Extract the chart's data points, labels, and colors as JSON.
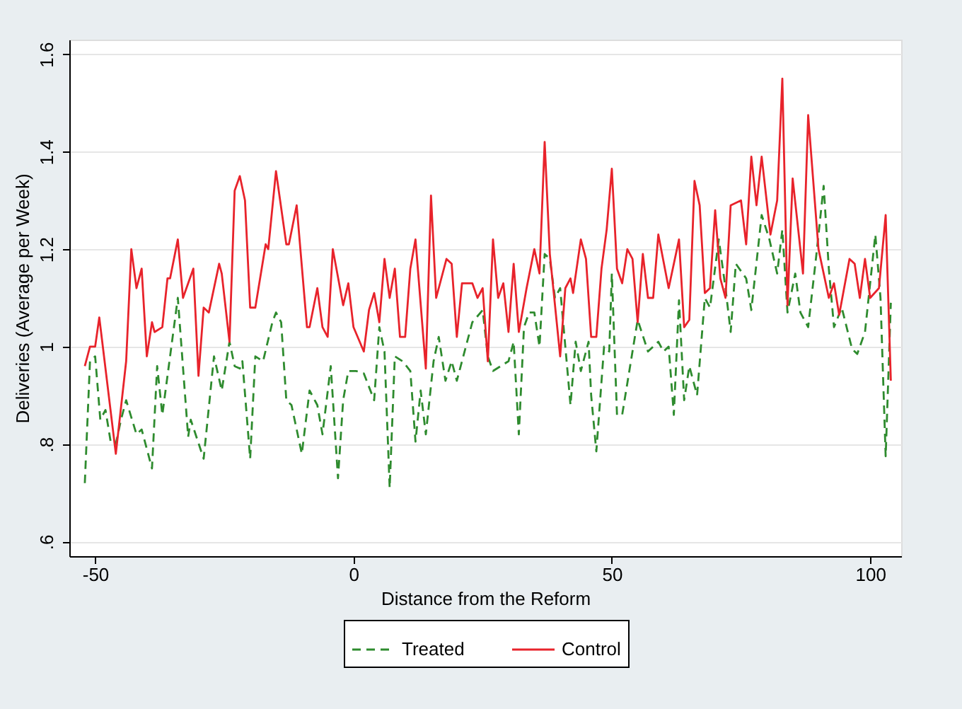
{
  "chart_data": {
    "type": "line",
    "xlabel": "Distance from the Reform",
    "ylabel": "Deliveries (Average per Week)",
    "xlim": [
      -55,
      106
    ],
    "xticks": [
      -50,
      0,
      50,
      100
    ],
    "ylim": [
      0.57,
      1.63
    ],
    "yticks": [
      {
        "value": 0.6,
        "label": ".6"
      },
      {
        "value": 0.8,
        "label": ".8"
      },
      1,
      1.2,
      1.4,
      1.6
    ],
    "grid": "y",
    "legend": "bottom",
    "series": [
      {
        "name": "Treated",
        "color": "#2e8b2e",
        "line_style": "dashed",
        "x": [
          -52,
          -51,
          -50,
          -49,
          -48,
          -47,
          -46,
          -45,
          -44,
          -42,
          -41,
          -39,
          -38,
          -37,
          -34,
          -32,
          -31.5,
          -29,
          -27,
          -25.5,
          -24,
          -23,
          -22,
          -21.5,
          -20,
          -19,
          -17.5,
          -15.7,
          -15,
          -14,
          -13,
          -12,
          -10,
          -8.5,
          -7,
          -6,
          -4.4,
          -3,
          -2,
          -1,
          0.5,
          2,
          4,
          5,
          6,
          7,
          8,
          9.5,
          11,
          12,
          13,
          14,
          15.5,
          16.5,
          17.8,
          19,
          20,
          22,
          23,
          25,
          26,
          27,
          30,
          31,
          32,
          33,
          34,
          35,
          36,
          37,
          38,
          39,
          40,
          42,
          43,
          44,
          45.5,
          46,
          47,
          48.5,
          49.5,
          50,
          51,
          52,
          55,
          57,
          59,
          60,
          61,
          62,
          63,
          64,
          65,
          66.5,
          68,
          69,
          70.7,
          72,
          73,
          74,
          76,
          77,
          79,
          80.5,
          82,
          83,
          84,
          85.5,
          86.5,
          88,
          89.5,
          91,
          92,
          93,
          94.5,
          96.5,
          97.5,
          99,
          101,
          102,
          103,
          104
        ],
        "values": [
          0.72,
          0.97,
          0.98,
          0.85,
          0.87,
          0.805,
          0.8,
          0.85,
          0.89,
          0.82,
          0.83,
          0.75,
          0.96,
          0.86,
          1.1,
          0.815,
          0.85,
          0.77,
          0.98,
          0.91,
          1.01,
          0.96,
          0.955,
          0.97,
          0.77,
          0.98,
          0.97,
          1.05,
          1.07,
          1.05,
          0.89,
          0.88,
          0.78,
          0.91,
          0.88,
          0.82,
          0.96,
          0.73,
          0.89,
          0.95,
          0.95,
          0.945,
          0.89,
          1.04,
          0.99,
          0.71,
          0.98,
          0.97,
          0.95,
          0.805,
          0.91,
          0.82,
          0.97,
          1.02,
          0.93,
          0.97,
          0.93,
          1.01,
          1.05,
          1.075,
          0.98,
          0.95,
          0.97,
          1.01,
          0.82,
          1.04,
          1.07,
          1.07,
          1.0,
          1.19,
          1.18,
          1.1,
          1.12,
          0.88,
          1.01,
          0.95,
          1.01,
          0.9,
          0.785,
          1.0,
          0.99,
          1.15,
          0.86,
          0.86,
          1.055,
          0.99,
          1.01,
          0.99,
          1.0,
          0.86,
          1.095,
          0.89,
          0.96,
          0.9,
          1.1,
          1.08,
          1.22,
          1.12,
          1.03,
          1.17,
          1.14,
          1.075,
          1.27,
          1.22,
          1.15,
          1.24,
          1.07,
          1.15,
          1.07,
          1.04,
          1.18,
          1.33,
          1.16,
          1.04,
          1.08,
          0.995,
          0.985,
          1.03,
          1.23,
          1.1,
          0.775,
          1.09
        ]
      },
      {
        "name": "Control",
        "color": "#e8232b",
        "line_style": "solid",
        "x": [
          -52,
          -51,
          -50,
          -49.2,
          -46,
          -44,
          -43,
          -42,
          -41,
          -40,
          -39,
          -38.5,
          -37,
          -36,
          -35.5,
          -34,
          -33,
          -31,
          -30,
          -29,
          -28,
          -26,
          -25.5,
          -24,
          -23,
          -22,
          -21,
          -20,
          -19,
          -17,
          -16.5,
          -15,
          -13,
          -12.5,
          -11,
          -9,
          -8.5,
          -7,
          -6,
          -5,
          -4,
          -2,
          -1,
          0,
          2,
          3,
          4,
          5,
          6,
          7,
          8,
          9,
          10,
          11,
          12,
          14,
          15,
          16,
          18,
          19,
          20,
          21,
          23,
          24,
          25,
          26,
          27,
          28,
          29,
          30,
          31,
          32,
          33.5,
          35,
          36,
          37,
          38,
          40,
          41,
          42,
          42.5,
          44,
          45,
          46,
          47,
          48,
          49,
          50,
          51,
          52,
          53,
          54,
          55,
          56,
          57,
          58,
          59,
          61,
          63,
          64,
          65,
          66,
          67,
          68,
          69,
          70,
          71,
          72,
          73,
          75,
          76,
          77,
          78,
          79,
          80.7,
          82,
          83,
          84,
          85,
          87,
          88,
          90,
          92,
          93,
          94,
          96,
          97,
          98,
          99,
          100,
          101.7,
          103,
          104
        ],
        "values": [
          0.96,
          1.0,
          1.0,
          1.06,
          0.78,
          0.97,
          1.2,
          1.12,
          1.16,
          0.98,
          1.05,
          1.03,
          1.04,
          1.14,
          1.14,
          1.22,
          1.1,
          1.16,
          0.94,
          1.08,
          1.07,
          1.17,
          1.15,
          1.01,
          1.32,
          1.35,
          1.3,
          1.08,
          1.08,
          1.21,
          1.2,
          1.36,
          1.21,
          1.21,
          1.29,
          1.04,
          1.04,
          1.12,
          1.04,
          1.02,
          1.2,
          1.085,
          1.13,
          1.04,
          0.99,
          1.075,
          1.11,
          1.05,
          1.18,
          1.1,
          1.16,
          1.02,
          1.02,
          1.16,
          1.22,
          0.955,
          1.31,
          1.1,
          1.18,
          1.17,
          1.02,
          1.13,
          1.13,
          1.1,
          1.12,
          0.97,
          1.22,
          1.1,
          1.13,
          1.03,
          1.17,
          1.03,
          1.12,
          1.2,
          1.15,
          1.42,
          1.19,
          0.98,
          1.12,
          1.14,
          1.11,
          1.22,
          1.18,
          1.02,
          1.02,
          1.16,
          1.24,
          1.365,
          1.16,
          1.13,
          1.2,
          1.18,
          1.05,
          1.19,
          1.1,
          1.1,
          1.23,
          1.12,
          1.22,
          1.04,
          1.055,
          1.34,
          1.29,
          1.11,
          1.12,
          1.28,
          1.14,
          1.1,
          1.29,
          1.3,
          1.21,
          1.39,
          1.29,
          1.39,
          1.23,
          1.3,
          1.55,
          1.085,
          1.345,
          1.15,
          1.475,
          1.2,
          1.1,
          1.13,
          1.065,
          1.18,
          1.17,
          1.1,
          1.18,
          1.1,
          1.12,
          1.27,
          0.93
        ]
      }
    ]
  }
}
